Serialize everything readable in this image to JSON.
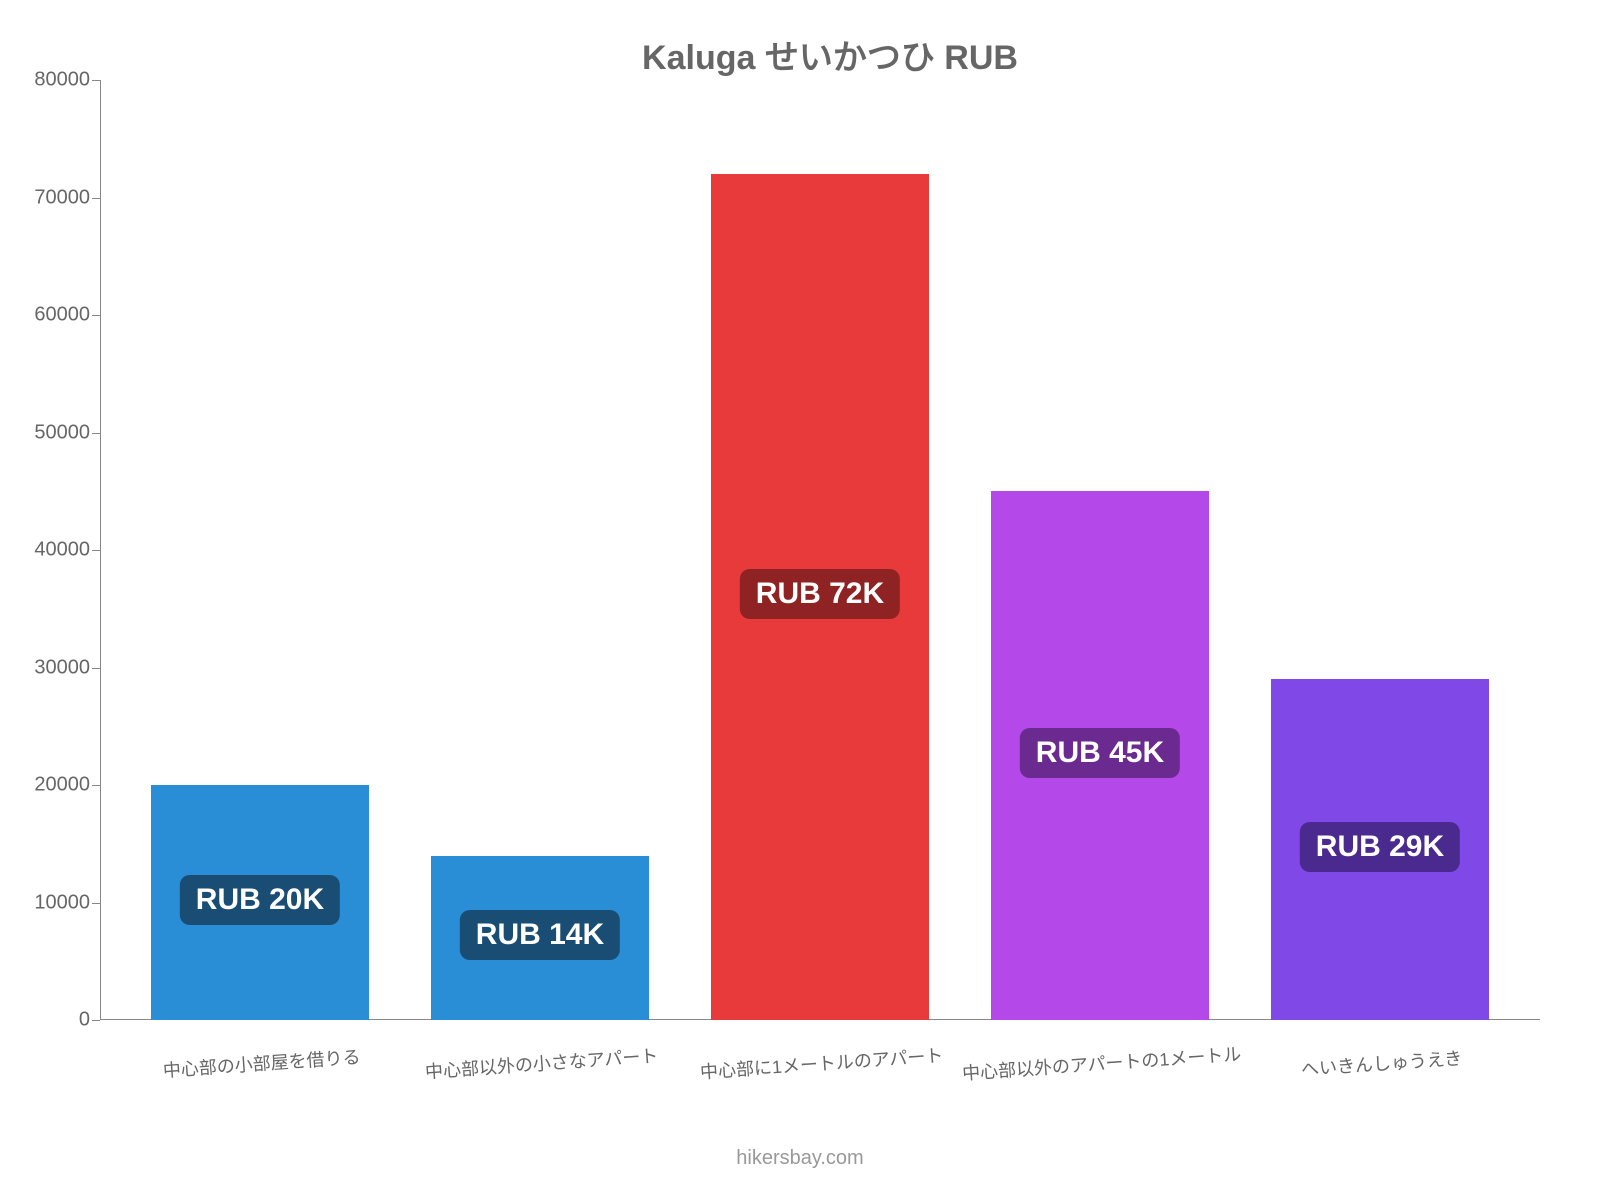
{
  "chart": {
    "type": "bar",
    "title": "Kaluga せいかつひ RUB",
    "title_color": "#666666",
    "title_fontsize": 34,
    "background_color": "#ffffff",
    "axis_color": "#888888",
    "label_color": "#666666",
    "y_axis": {
      "min": 0,
      "max": 80000,
      "step": 10000,
      "ticks": [
        "0",
        "10000",
        "20000",
        "30000",
        "40000",
        "50000",
        "60000",
        "70000",
        "80000"
      ],
      "fontsize": 20
    },
    "x_axis": {
      "fontsize": 18,
      "rotation_deg": -4
    },
    "bar_width_pct": 78,
    "categories": [
      "中心部の小部屋を借りる",
      "中心部以外の小さなアパート",
      "中心部に1メートルのアパート",
      "中心部以外のアパートの1メートル",
      "へいきんしゅうえき"
    ],
    "values": [
      20000,
      14000,
      72000,
      45000,
      29000
    ],
    "bar_colors": [
      "#2a8ed7",
      "#2a8ed7",
      "#e83a3a",
      "#b448e8",
      "#8148e8"
    ],
    "value_labels": [
      "RUB 20K",
      "RUB 14K",
      "RUB 72K",
      "RUB 45K",
      "RUB 29K"
    ],
    "value_label_bg": [
      "#1a4d73",
      "#1a4d73",
      "#8f2222",
      "#6a2a8f",
      "#4a2a8f"
    ],
    "value_label_fontsize": 30,
    "value_label_color": "#ffffff",
    "footer": "hikersbay.com",
    "footer_color": "#999999"
  }
}
